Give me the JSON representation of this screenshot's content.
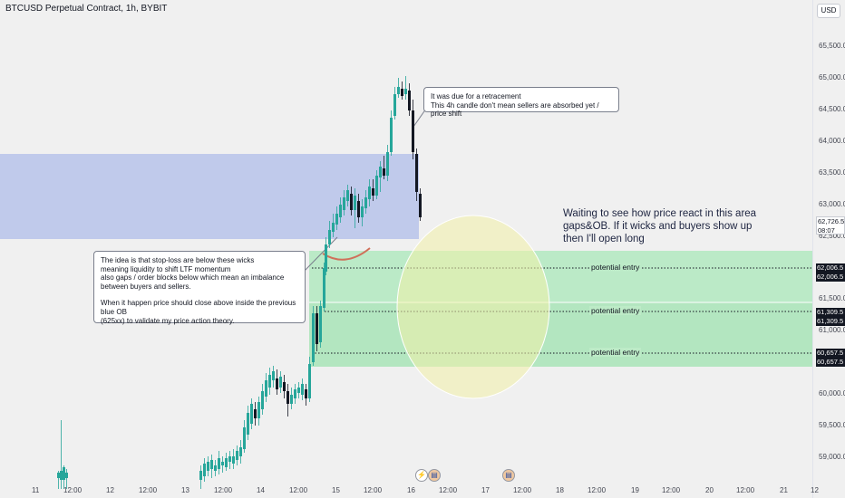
{
  "header": {
    "title": "BTCUSD Perpetual Contract, 1h, BYBIT",
    "currency_button": "USD"
  },
  "price_axis": {
    "ticks": [
      "65,500.0",
      "65,000.0",
      "64,500.0",
      "64,000.0",
      "63,500.0",
      "63,000.0",
      "62,500.0",
      "61,500.0",
      "61,000.0",
      "60,000.0",
      "59,500.0",
      "59,000.0"
    ],
    "current_price": "62,726.5",
    "countdown": "08:07",
    "entry_tags": [
      "62,006.5",
      "62,006.5",
      "61,309.5",
      "61,309.5",
      "60,657.5",
      "60,657.5"
    ]
  },
  "time_axis": {
    "ticks": [
      "11",
      "12:00",
      "12",
      "12:00",
      "13",
      "12:00",
      "14",
      "12:00",
      "15",
      "12:00",
      "16",
      "12:00",
      "17",
      "12:00",
      "18",
      "12:00",
      "19",
      "12:00",
      "20",
      "12:00",
      "21",
      "12"
    ]
  },
  "annotations": {
    "retracement_note": [
      "It was due for a retracement",
      "This 4h candle don't mean sellers are absorbed yet / price shift"
    ],
    "idea_note": [
      "The idea is that stop-loss are below these wicks",
      "meaning liquidity to shift LTF momentum",
      "also gaps / order blocks below which mean an imbalance",
      "between buyers and sellers.",
      "",
      "When it happen price should close above inside the previous blue OB",
      "(625xx) to validate my price action theory."
    ],
    "waiting_note": [
      "Waiting to see how price react in this area",
      "gaps&OB. If it wicks and buyers show up",
      "then I'll open long"
    ],
    "entries": [
      "potential entry",
      "potential entry",
      "potential entry"
    ]
  },
  "colors": {
    "bull": "#26a69a",
    "bear": "#131722",
    "blue_zone": "#b7c3ea",
    "green_zone": "#9fe3b0",
    "ellipse": "#f3f0a8"
  },
  "event_icons": [
    "lightning-icon",
    "flag-icon",
    "flag-icon"
  ]
}
